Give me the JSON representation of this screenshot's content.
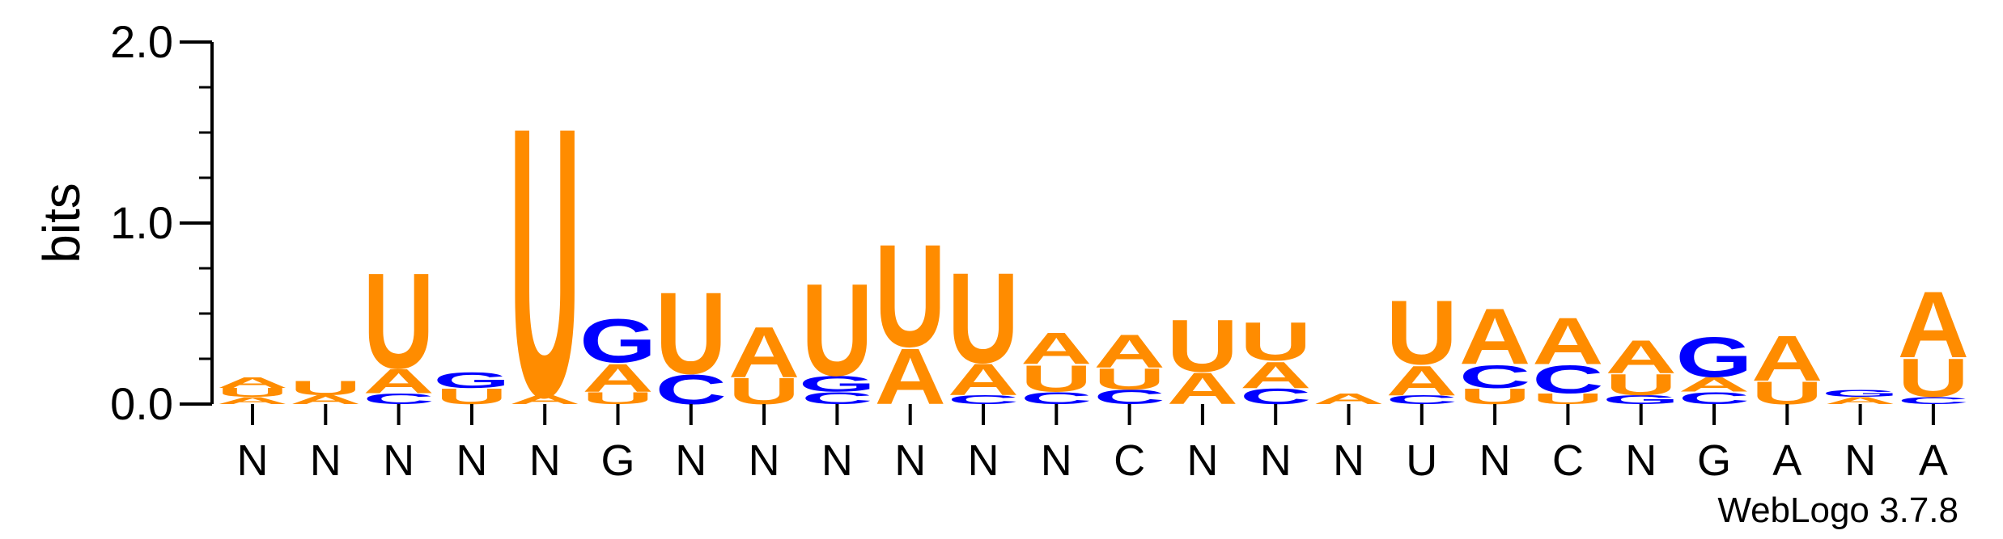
{
  "chart_data": {
    "type": "sequence-logo",
    "ylabel": "bits",
    "ylim": [
      0,
      2.0
    ],
    "yticks": [
      {
        "value": 0.0,
        "label": "0.0"
      },
      {
        "value": 1.0,
        "label": "1.0"
      },
      {
        "value": 2.0,
        "label": "2.0"
      }
    ],
    "footer": "WebLogo 3.7.8",
    "colors": {
      "A": "#ff8c00",
      "U": "#ff8c00",
      "G": "#0000ff",
      "C": "#0000ff"
    },
    "positions": [
      {
        "label": "N",
        "stack": [
          [
            "A",
            0.04
          ],
          [
            "U",
            0.05
          ],
          [
            "A",
            0.06
          ]
        ]
      },
      {
        "label": "N",
        "stack": [
          [
            "A",
            0.05
          ],
          [
            "U",
            0.08
          ]
        ]
      },
      {
        "label": "N",
        "stack": [
          [
            "C",
            0.06
          ],
          [
            "A",
            0.14
          ],
          [
            "U",
            0.55
          ]
        ]
      },
      {
        "label": "N",
        "stack": [
          [
            "U",
            0.09
          ],
          [
            "G",
            0.09
          ]
        ]
      },
      {
        "label": "N",
        "stack": [
          [
            "A",
            0.05
          ],
          [
            "U",
            1.55
          ]
        ]
      },
      {
        "label": "G",
        "stack": [
          [
            "U",
            0.07
          ],
          [
            "A",
            0.16
          ],
          [
            "G",
            0.25
          ]
        ]
      },
      {
        "label": "N",
        "stack": [
          [
            "C",
            0.17
          ],
          [
            "U",
            0.47
          ]
        ]
      },
      {
        "label": "N",
        "stack": [
          [
            "U",
            0.15
          ],
          [
            "A",
            0.29
          ]
        ]
      },
      {
        "label": "N",
        "stack": [
          [
            "C",
            0.07
          ],
          [
            "G",
            0.09
          ],
          [
            "U",
            0.53
          ]
        ]
      },
      {
        "label": "N",
        "stack": [
          [
            "A",
            0.32
          ],
          [
            "U",
            0.59
          ]
        ]
      },
      {
        "label": "N",
        "stack": [
          [
            "C",
            0.05
          ],
          [
            "A",
            0.18
          ],
          [
            "U",
            0.52
          ]
        ]
      },
      {
        "label": "N",
        "stack": [
          [
            "C",
            0.07
          ],
          [
            "U",
            0.15
          ],
          [
            "A",
            0.18
          ]
        ]
      },
      {
        "label": "C",
        "stack": [
          [
            "C",
            0.08
          ],
          [
            "U",
            0.12
          ],
          [
            "A",
            0.19
          ]
        ]
      },
      {
        "label": "N",
        "stack": [
          [
            "A",
            0.18
          ],
          [
            "U",
            0.3
          ]
        ]
      },
      {
        "label": "N",
        "stack": [
          [
            "C",
            0.09
          ],
          [
            "A",
            0.15
          ],
          [
            "U",
            0.22
          ]
        ]
      },
      {
        "label": "N",
        "stack": [
          [
            "A",
            0.06
          ]
        ]
      },
      {
        "label": "U",
        "stack": [
          [
            "C",
            0.05
          ],
          [
            "A",
            0.17
          ],
          [
            "U",
            0.37
          ]
        ]
      },
      {
        "label": "N",
        "stack": [
          [
            "U",
            0.09
          ],
          [
            "C",
            0.13
          ],
          [
            "A",
            0.32
          ]
        ]
      },
      {
        "label": "C",
        "stack": [
          [
            "U",
            0.06
          ],
          [
            "C",
            0.16
          ],
          [
            "A",
            0.27
          ]
        ]
      },
      {
        "label": "N",
        "stack": [
          [
            "G",
            0.05
          ],
          [
            "U",
            0.12
          ],
          [
            "A",
            0.19
          ]
        ]
      },
      {
        "label": "G",
        "stack": [
          [
            "C",
            0.07
          ],
          [
            "A",
            0.08
          ],
          [
            "G",
            0.23
          ]
        ]
      },
      {
        "label": "A",
        "stack": [
          [
            "U",
            0.13
          ],
          [
            "A",
            0.26
          ]
        ]
      },
      {
        "label": "N",
        "stack": [
          [
            "A",
            0.04
          ],
          [
            "G",
            0.04
          ]
        ]
      },
      {
        "label": "A",
        "stack": [
          [
            "C",
            0.04
          ],
          [
            "U",
            0.22
          ],
          [
            "A",
            0.38
          ]
        ]
      }
    ]
  }
}
